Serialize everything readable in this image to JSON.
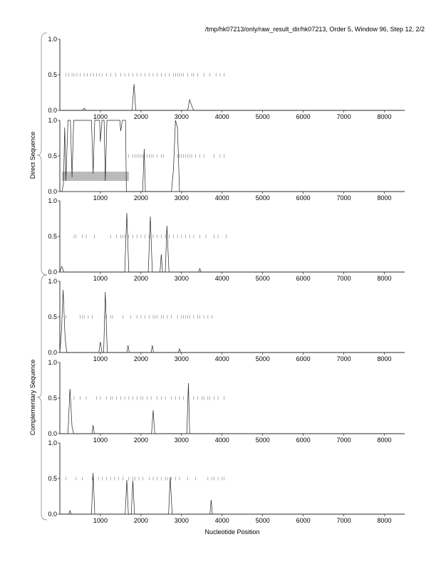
{
  "chart_data": {
    "type": "line",
    "title": "/tmp/hk07213/only/raw_result_dir/hk07213, Order 5, Window 96, Step 12, 2/2",
    "xlabel": "Nucleotide Position",
    "group_labels": [
      "Direct Sequence",
      "Complementary Sequence"
    ],
    "xlim": [
      0,
      8500
    ],
    "ylim": [
      0,
      1
    ],
    "xticks": [
      1000,
      2000,
      3000,
      4000,
      5000,
      6000,
      7000,
      8000
    ],
    "yticks": [
      "0.0",
      "0.5",
      "1.0"
    ],
    "panels": [
      {
        "name": "direct-frame-1",
        "points": [
          [
            0,
            0
          ],
          [
            550,
            0
          ],
          [
            600,
            0.03
          ],
          [
            650,
            0
          ],
          [
            1780,
            0
          ],
          [
            1830,
            0.37
          ],
          [
            1870,
            0
          ],
          [
            3150,
            0
          ],
          [
            3200,
            0.15
          ],
          [
            3260,
            0.05
          ],
          [
            3300,
            0
          ],
          [
            8500,
            0
          ]
        ],
        "markers": [
          150,
          220,
          300,
          350,
          420,
          500,
          600,
          680,
          760,
          830,
          900,
          980,
          1050,
          1150,
          1250,
          1380,
          1500,
          1600,
          1700,
          1800,
          1900,
          2000,
          2100,
          2200,
          2300,
          2400,
          2500,
          2600,
          2700,
          2800,
          2850,
          2900,
          2950,
          3000,
          3050,
          3150,
          3250,
          3300,
          3400,
          3550,
          3700,
          3850,
          3950,
          4050
        ]
      },
      {
        "name": "direct-frame-2",
        "points": [
          [
            50,
            0
          ],
          [
            90,
            0.1
          ],
          [
            120,
            0.9
          ],
          [
            150,
            0.15
          ],
          [
            200,
            1
          ],
          [
            260,
            1
          ],
          [
            300,
            0.2
          ],
          [
            340,
            1
          ],
          [
            780,
            1
          ],
          [
            820,
            0.25
          ],
          [
            860,
            1
          ],
          [
            980,
            1
          ],
          [
            1000,
            0.7
          ],
          [
            1040,
            1
          ],
          [
            1090,
            1
          ],
          [
            1120,
            0.15
          ],
          [
            1160,
            1
          ],
          [
            1480,
            1
          ],
          [
            1500,
            0.85
          ],
          [
            1540,
            1
          ],
          [
            1620,
            1
          ],
          [
            1640,
            0
          ],
          [
            2040,
            0
          ],
          [
            2080,
            0.6
          ],
          [
            2110,
            0
          ],
          [
            2750,
            0
          ],
          [
            2800,
            0.3
          ],
          [
            2850,
            1
          ],
          [
            2900,
            0.9
          ],
          [
            2950,
            0
          ],
          [
            8500,
            0
          ]
        ],
        "markers": [
          1700,
          1800,
          1850,
          1900,
          1950,
          2000,
          2050,
          2150,
          2200,
          2250,
          2300,
          2400,
          2500,
          2550,
          2900,
          2950,
          3000,
          3050,
          3100,
          3150,
          3200,
          3250,
          3350,
          3450,
          3550,
          3800,
          3950,
          4050
        ],
        "orf": [
          50,
          1700
        ]
      },
      {
        "name": "direct-frame-3",
        "points": [
          [
            0,
            0
          ],
          [
            50,
            0.08
          ],
          [
            100,
            0
          ],
          [
            1600,
            0
          ],
          [
            1650,
            0.83
          ],
          [
            1700,
            0
          ],
          [
            2180,
            0
          ],
          [
            2230,
            0.78
          ],
          [
            2280,
            0
          ],
          [
            2470,
            0
          ],
          [
            2500,
            0.25
          ],
          [
            2530,
            0
          ],
          [
            2600,
            0
          ],
          [
            2640,
            0.65
          ],
          [
            2690,
            0
          ],
          [
            3420,
            0
          ],
          [
            3450,
            0.05
          ],
          [
            3480,
            0
          ],
          [
            8500,
            0
          ]
        ],
        "markers": [
          350,
          400,
          550,
          650,
          850,
          1250,
          1400,
          1500,
          1550,
          1600,
          1700,
          1800,
          1900,
          2000,
          2100,
          2200,
          2300,
          2400,
          2500,
          2600,
          2700,
          2800,
          2900,
          3000,
          3100,
          3200,
          3300,
          3450,
          3600,
          3800,
          3900,
          4100
        ]
      },
      {
        "name": "comp-frame-1",
        "points": [
          [
            0,
            0
          ],
          [
            40,
            0.3
          ],
          [
            80,
            0.88
          ],
          [
            130,
            0.2
          ],
          [
            170,
            0
          ],
          [
            960,
            0
          ],
          [
            1000,
            0.15
          ],
          [
            1040,
            0
          ],
          [
            1080,
            0
          ],
          [
            1120,
            0.85
          ],
          [
            1170,
            0
          ],
          [
            1650,
            0
          ],
          [
            1680,
            0.1
          ],
          [
            1710,
            0
          ],
          [
            2250,
            0
          ],
          [
            2280,
            0.1
          ],
          [
            2310,
            0
          ],
          [
            2920,
            0
          ],
          [
            2950,
            0.05
          ],
          [
            2980,
            0
          ],
          [
            8500,
            0
          ]
        ],
        "markers": [
          150,
          500,
          550,
          600,
          700,
          800,
          1100,
          1150,
          1250,
          1300,
          1550,
          1750,
          1900,
          2000,
          2100,
          2200,
          2300,
          2350,
          2400,
          2500,
          2550,
          2650,
          2750,
          2900,
          3000,
          3050,
          3100,
          3150,
          3200,
          3300,
          3400,
          3450,
          3550,
          3650,
          3750
        ]
      },
      {
        "name": "comp-frame-2",
        "points": [
          [
            0,
            0
          ],
          [
            200,
            0
          ],
          [
            250,
            0.63
          ],
          [
            300,
            0.1
          ],
          [
            340,
            0
          ],
          [
            790,
            0
          ],
          [
            820,
            0.12
          ],
          [
            850,
            0
          ],
          [
            2260,
            0
          ],
          [
            2300,
            0.33
          ],
          [
            2340,
            0
          ],
          [
            3130,
            0
          ],
          [
            3170,
            0.71
          ],
          [
            3200,
            0
          ],
          [
            8500,
            0
          ]
        ],
        "markers": [
          350,
          500,
          650,
          900,
          1000,
          1150,
          1250,
          1300,
          1400,
          1500,
          1600,
          1700,
          1800,
          1900,
          2000,
          2050,
          2150,
          2250,
          2400,
          2500,
          2600,
          2750,
          2850,
          2950,
          3050,
          3300,
          3400,
          3500,
          3550,
          3650,
          3700,
          3800,
          3900,
          4050
        ]
      },
      {
        "name": "comp-frame-3",
        "points": [
          [
            0,
            0
          ],
          [
            220,
            0
          ],
          [
            250,
            0.05
          ],
          [
            280,
            0
          ],
          [
            780,
            0
          ],
          [
            820,
            0.58
          ],
          [
            860,
            0
          ],
          [
            1610,
            0
          ],
          [
            1650,
            0.48
          ],
          [
            1690,
            0
          ],
          [
            1760,
            0
          ],
          [
            1800,
            0.47
          ],
          [
            1840,
            0
          ],
          [
            2680,
            0
          ],
          [
            2720,
            0.52
          ],
          [
            2770,
            0
          ],
          [
            3700,
            0
          ],
          [
            3730,
            0.2
          ],
          [
            3760,
            0
          ],
          [
            8500,
            0
          ]
        ],
        "markers": [
          150,
          400,
          550,
          800,
          950,
          1050,
          1150,
          1250,
          1350,
          1450,
          1550,
          1700,
          1800,
          1850,
          1950,
          2050,
          2200,
          2300,
          2400,
          2500,
          2600,
          2650,
          2750,
          2850,
          2950,
          3150,
          3350,
          3650,
          3750,
          3800,
          3900,
          4000,
          4050
        ]
      }
    ]
  }
}
